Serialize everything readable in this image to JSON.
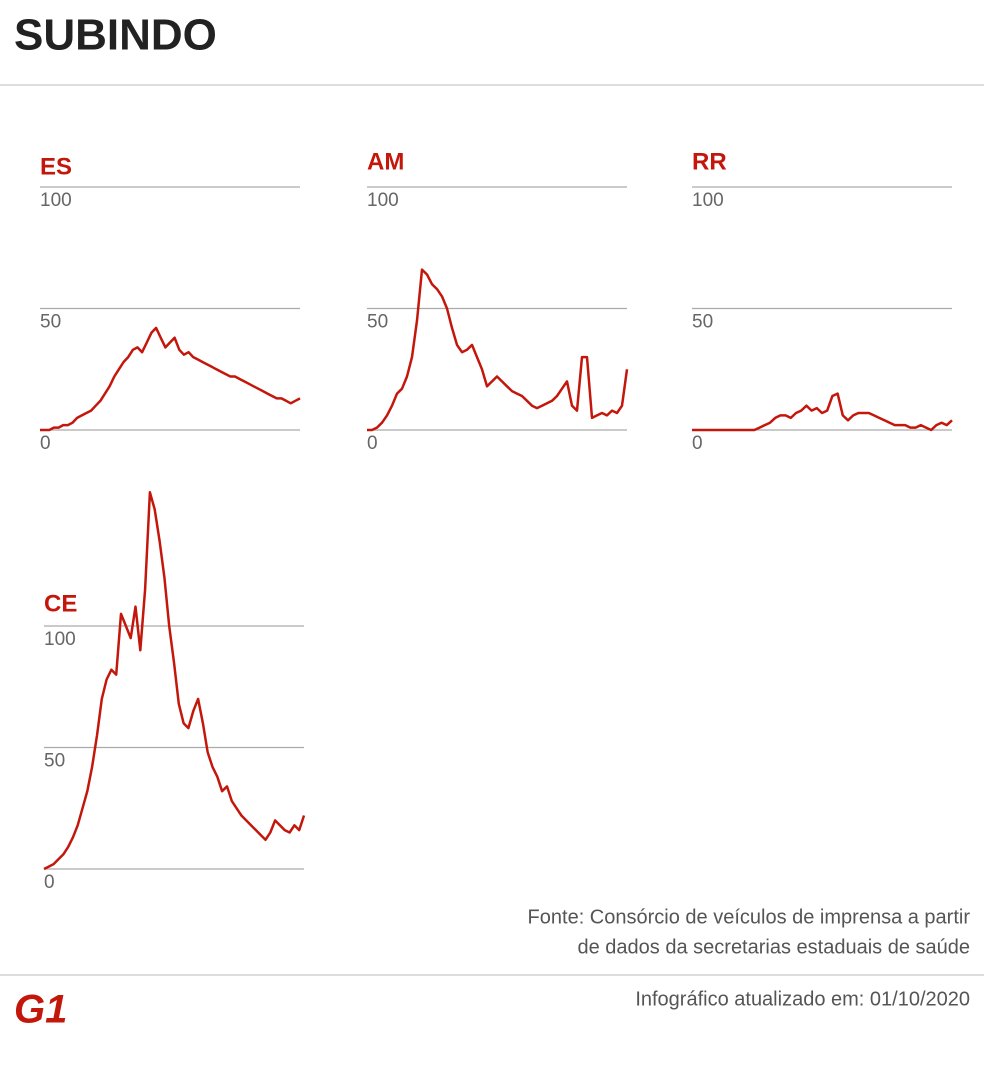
{
  "title": "SUBINDO",
  "chart_data": [
    {
      "type": "line",
      "title": "ES",
      "color": "#c4170c",
      "ylim": [
        0,
        100
      ],
      "yticks": [
        0,
        50,
        100
      ],
      "grid": true,
      "values": [
        0,
        0,
        0,
        1,
        1,
        2,
        2,
        3,
        5,
        6,
        7,
        8,
        10,
        12,
        15,
        18,
        22,
        25,
        28,
        30,
        33,
        34,
        32,
        36,
        40,
        42,
        38,
        34,
        36,
        38,
        33,
        31,
        32,
        30,
        29,
        28,
        27,
        26,
        25,
        24,
        23,
        22,
        22,
        21,
        20,
        19,
        18,
        17,
        16,
        15,
        14,
        13,
        13,
        12,
        11,
        12,
        13
      ]
    },
    {
      "type": "line",
      "title": "AM",
      "color": "#c4170c",
      "ylim": [
        0,
        100
      ],
      "yticks": [
        0,
        50,
        100
      ],
      "grid": true,
      "values": [
        0,
        0,
        1,
        3,
        6,
        10,
        15,
        17,
        22,
        30,
        45,
        66,
        64,
        60,
        58,
        55,
        50,
        42,
        35,
        32,
        33,
        35,
        30,
        25,
        18,
        20,
        22,
        20,
        18,
        16,
        15,
        14,
        12,
        10,
        9,
        10,
        11,
        12,
        14,
        17,
        20,
        10,
        8,
        30,
        30,
        5,
        6,
        7,
        6,
        8,
        7,
        10,
        25
      ]
    },
    {
      "type": "line",
      "title": "RR",
      "color": "#c4170c",
      "ylim": [
        0,
        100
      ],
      "yticks": [
        0,
        50,
        100
      ],
      "grid": true,
      "values": [
        0,
        0,
        0,
        0,
        0,
        0,
        0,
        0,
        0,
        0,
        0,
        0,
        0,
        1,
        2,
        3,
        5,
        6,
        6,
        5,
        7,
        8,
        10,
        8,
        9,
        7,
        8,
        14,
        15,
        6,
        4,
        6,
        7,
        7,
        7,
        6,
        5,
        4,
        3,
        2,
        2,
        2,
        1,
        1,
        2,
        1,
        0,
        2,
        3,
        2,
        4
      ]
    },
    {
      "type": "line",
      "title": "CE",
      "color": "#c4170c",
      "ylim": [
        0,
        155
      ],
      "yticks": [
        0,
        50,
        100
      ],
      "grid": true,
      "values": [
        0,
        1,
        2,
        4,
        6,
        9,
        13,
        18,
        25,
        32,
        42,
        55,
        70,
        78,
        82,
        80,
        105,
        100,
        95,
        108,
        90,
        115,
        155,
        148,
        135,
        120,
        100,
        85,
        68,
        60,
        58,
        65,
        70,
        60,
        48,
        42,
        38,
        32,
        34,
        28,
        25,
        22,
        20,
        18,
        16,
        14,
        12,
        15,
        20,
        18,
        16,
        15,
        18,
        16,
        22
      ]
    }
  ],
  "source": [
    "Fonte: Consórcio de veículos de imprensa a partir",
    "de dados da secretarias estaduais de saúde"
  ],
  "updated": "Infográfico atualizado em: 01/10/2020",
  "logo": "G1"
}
